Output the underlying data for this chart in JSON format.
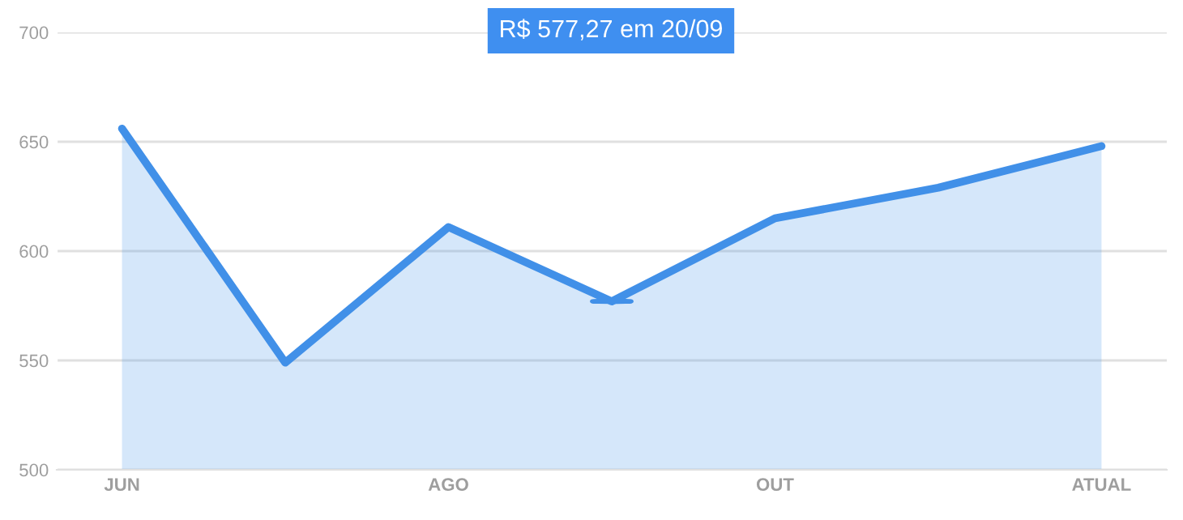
{
  "chart_data": {
    "type": "area",
    "categories": [
      "JUN",
      null,
      "AGO",
      null,
      "OUT",
      null,
      "ATUAL"
    ],
    "series": [
      {
        "color": "#4190e8",
        "values": [
          656,
          549,
          611,
          577,
          615,
          629,
          648
        ]
      }
    ],
    "ylim": [
      500,
      700
    ],
    "yticks": [
      500,
      550,
      600,
      650,
      700
    ],
    "grid": "y",
    "legend": false,
    "marker": "none",
    "line_style": "solid",
    "annotations": [
      "R$ 577,27 em 20/09"
    ]
  }
}
